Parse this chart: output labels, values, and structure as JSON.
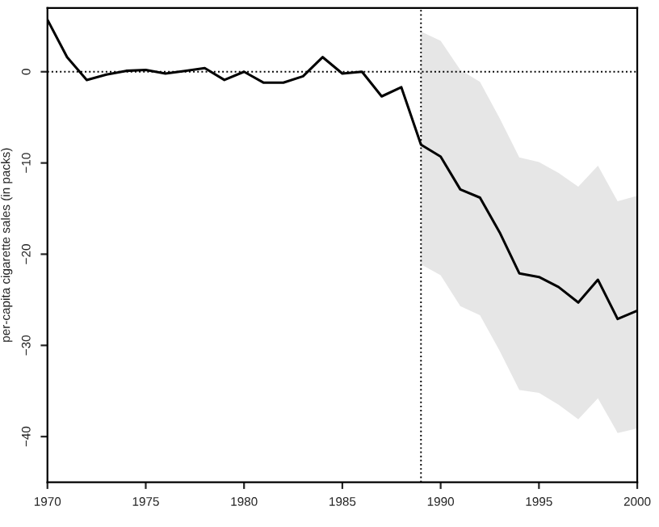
{
  "chart_data": {
    "type": "line",
    "ylabel": "per-capita cigarette sales (in packs)",
    "x": [
      1970,
      1971,
      1972,
      1973,
      1974,
      1975,
      1976,
      1977,
      1978,
      1979,
      1980,
      1981,
      1982,
      1983,
      1984,
      1985,
      1986,
      1987,
      1988,
      1989,
      1990,
      1991,
      1992,
      1993,
      1994,
      1995,
      1996,
      1997,
      1998,
      1999,
      2000
    ],
    "series": [
      {
        "color": "#000000",
        "values": [
          5.7,
          1.6,
          -0.9,
          -0.3,
          0.1,
          0.2,
          -0.2,
          0.1,
          0.4,
          -0.9,
          0,
          -1.2,
          -1.2,
          -0.5,
          1.6,
          -0.2,
          0,
          -2.7,
          -1.7,
          -8.0,
          -9.3,
          -12.9,
          -13.8,
          -17.6,
          -22.1,
          -22.5,
          -23.6,
          -25.3,
          -22.8,
          -27.1,
          -26.2
        ],
        "lower": [
          null,
          null,
          null,
          null,
          null,
          null,
          null,
          null,
          null,
          null,
          null,
          null,
          null,
          null,
          null,
          null,
          null,
          null,
          null,
          -21.1,
          -22.3,
          -25.7,
          -26.7,
          -30.6,
          -34.9,
          -35.2,
          -36.5,
          -38.1,
          -35.8,
          -39.6,
          -39.1
        ],
        "upper": [
          null,
          null,
          null,
          null,
          null,
          null,
          null,
          null,
          null,
          null,
          null,
          null,
          null,
          null,
          null,
          null,
          null,
          null,
          null,
          4.4,
          3.4,
          0.2,
          -1.1,
          -5.1,
          -9.4,
          -9.9,
          -11.1,
          -12.6,
          -10.3,
          -14.2,
          -13.6
        ]
      }
    ],
    "xlim": [
      1970,
      2000
    ],
    "ylim": [
      -45,
      7
    ],
    "xticks": [
      1970,
      1975,
      1980,
      1985,
      1990,
      1995,
      2000
    ],
    "yticks": [
      {
        "value": 0,
        "label": "0"
      },
      {
        "value": -10,
        "label": "−10"
      },
      {
        "value": -20,
        "label": "−20"
      },
      {
        "value": -30,
        "label": "−30"
      },
      {
        "value": -40,
        "label": "−40"
      }
    ],
    "ref_lines": [
      {
        "axis": "y",
        "value": 0,
        "line_style": "dotted",
        "color": "#000000"
      },
      {
        "axis": "x",
        "value": 1989,
        "line_style": "dotted",
        "color": "#000000"
      }
    ],
    "grid": false,
    "legend": false,
    "line_style": "solid",
    "marker": "none"
  }
}
